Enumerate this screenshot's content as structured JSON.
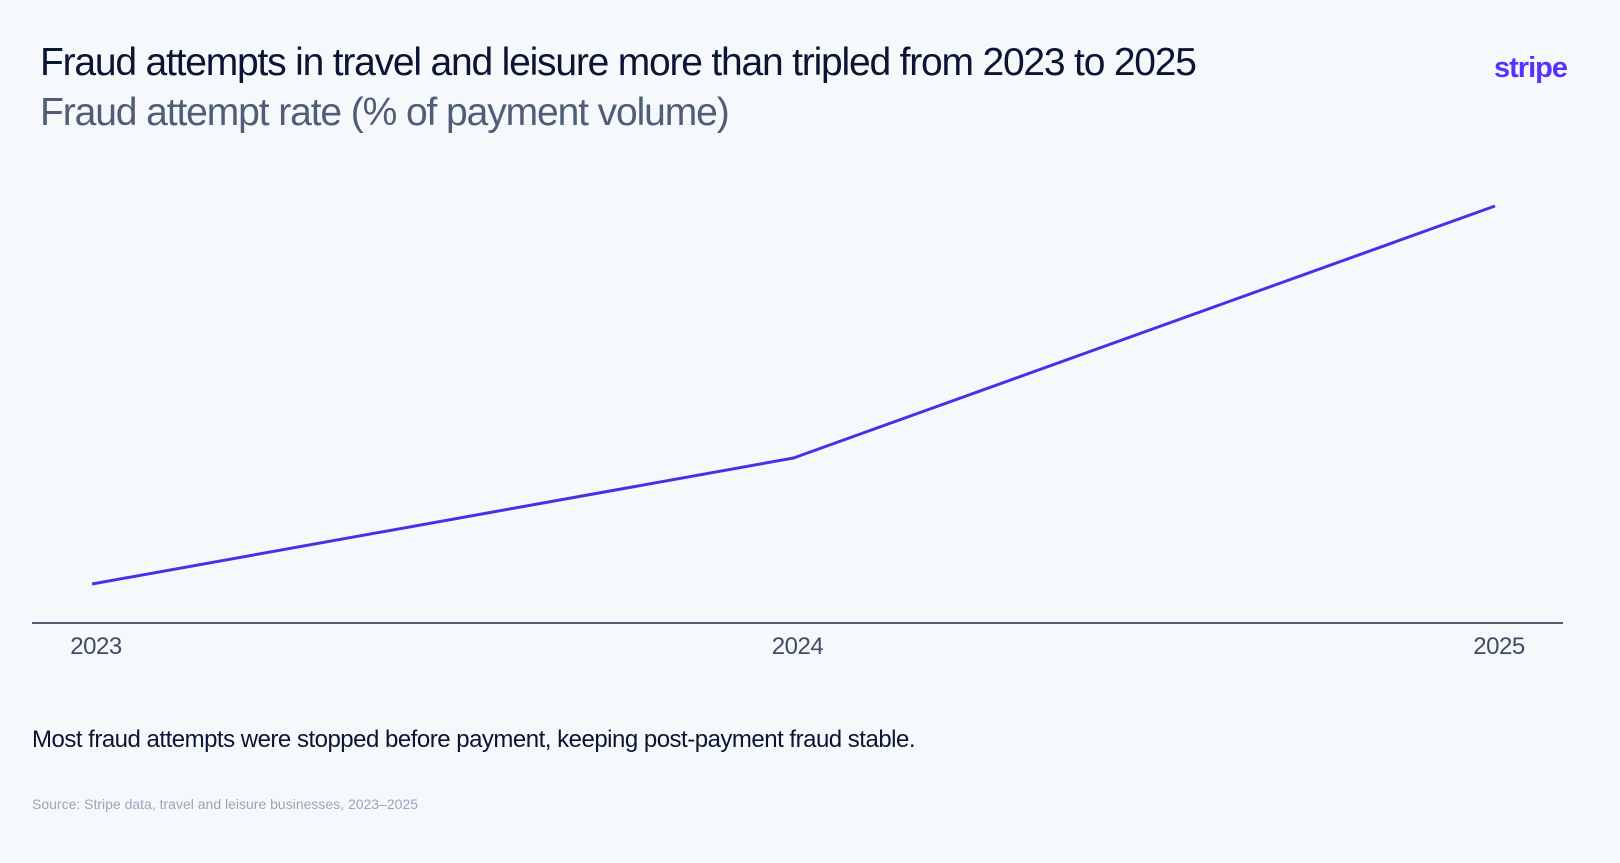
{
  "header": {
    "title": "Fraud attempts in travel and leisure more than tripled from 2023 to 2025",
    "subtitle": "Fraud attempt rate (% of payment volume)",
    "logo_text": "stripe"
  },
  "chart_data": {
    "type": "line",
    "categories": [
      "2023",
      "2024",
      "2025"
    ],
    "series": [
      {
        "values": [
          1.0,
          4.2,
          10.6
        ]
      }
    ],
    "title": "Fraud attempts in travel and leisure more than tripled from 2023 to 2025",
    "ylabel": "Fraud attempt rate (% of payment volume)",
    "grid": false,
    "legend": "none",
    "colors": {
      "line": "#4b2ee8",
      "axis": "#1f2b44"
    }
  },
  "footer": {
    "note": "Most fraud attempts were stopped before payment, keeping post-payment fraud stable.",
    "source": "Source: Stripe data, travel and leisure businesses, 2023–2025"
  }
}
